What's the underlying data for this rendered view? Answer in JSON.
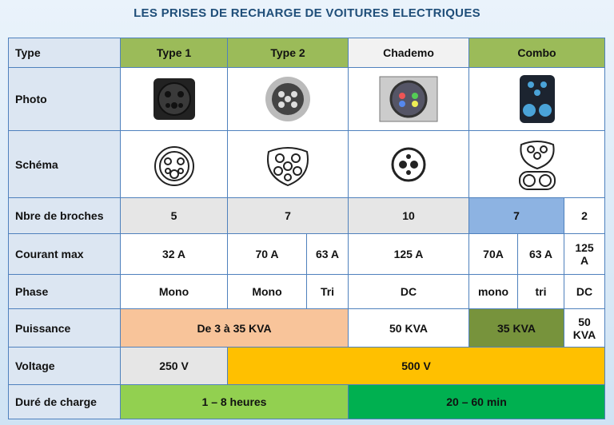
{
  "header": {
    "title": "LES PRISES DE RECHARGE DE VOITURES ELECTRIQUES"
  },
  "table": {
    "rows": [
      [
        "Type",
        "Type 1",
        "Type 2",
        "Chademo",
        "Combo"
      ],
      [
        "Photo"
      ],
      [
        "Schéma"
      ],
      [
        "Nbre de broches",
        "5",
        "7",
        "10",
        "7",
        "2"
      ],
      [
        "Courant max",
        "32 A",
        "70 A",
        "63 A",
        "125 A",
        "70A",
        "63 A",
        "125 A"
      ],
      [
        "Phase",
        "Mono",
        "Mono",
        "Tri",
        "DC",
        "mono",
        "tri",
        "DC"
      ],
      [
        "Puissance",
        "De 3 à 35 KVA",
        "50 KVA",
        "35 KVA",
        "50 KVA"
      ],
      [
        "Voltage",
        "250 V",
        "500 V"
      ],
      [
        "Duré de charge",
        "1 – 8 heures",
        "20 – 60 min"
      ]
    ]
  }
}
